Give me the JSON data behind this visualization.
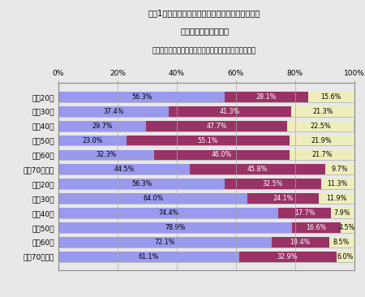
{
  "title_line1": "【図1】夫の担当率が最も高い家事は「ごみ出し」",
  "title_line2": "・・・しかし３割前後",
  "subtitle": "＜あなたは家事をどれくらいしますか？（ごみ出し）＞",
  "categories": [
    "男性20代",
    "男性30代",
    "男性40代",
    "男性50代",
    "男性60代",
    "男性70代以上",
    "女性20代",
    "女性30代",
    "女性40代",
    "女性50代",
    "女性60代",
    "女性70代以上"
  ],
  "main": [
    56.3,
    37.4,
    29.7,
    23.0,
    32.3,
    44.5,
    56.3,
    64.0,
    74.4,
    78.9,
    72.1,
    61.1
  ],
  "sometimes": [
    28.1,
    41.3,
    47.7,
    55.1,
    46.0,
    45.8,
    32.5,
    24.1,
    17.7,
    16.6,
    19.4,
    32.9
  ],
  "rarely": [
    15.6,
    21.3,
    22.5,
    21.9,
    21.7,
    9.7,
    11.3,
    11.9,
    7.9,
    4.5,
    8.5,
    6.0
  ],
  "color_main": "#9999ee",
  "color_sometimes": "#993366",
  "color_rarely": "#eeeebb",
  "color_bar_bg": "#c8c8c8",
  "background_color": "#e8e8e8",
  "plot_bg_color": "#e8e8e8",
  "border_color": "#888888"
}
